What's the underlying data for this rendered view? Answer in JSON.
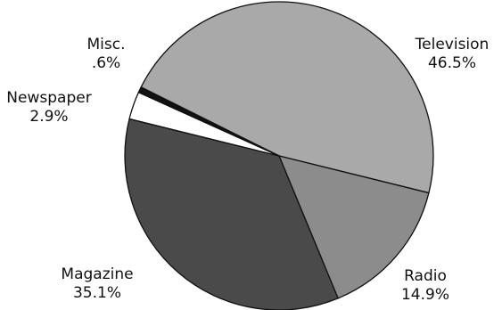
{
  "chart_data": {
    "type": "pie",
    "title": "",
    "slices": [
      {
        "label": "Television",
        "value": 46.5,
        "value_label": "46.5%",
        "color": "#a9a9a9"
      },
      {
        "label": "Radio",
        "value": 14.9,
        "value_label": "14.9%",
        "color": "#8c8c8c"
      },
      {
        "label": "Magazine",
        "value": 35.1,
        "value_label": "35.1%",
        "color": "#4a4a4a"
      },
      {
        "label": "Newspaper",
        "value": 2.9,
        "value_label": "2.9%",
        "color": "#ffffff"
      },
      {
        "label": "Misc.",
        "value": 0.6,
        "value_label": ".6%",
        "color": "#111111"
      }
    ],
    "legend": "none"
  }
}
